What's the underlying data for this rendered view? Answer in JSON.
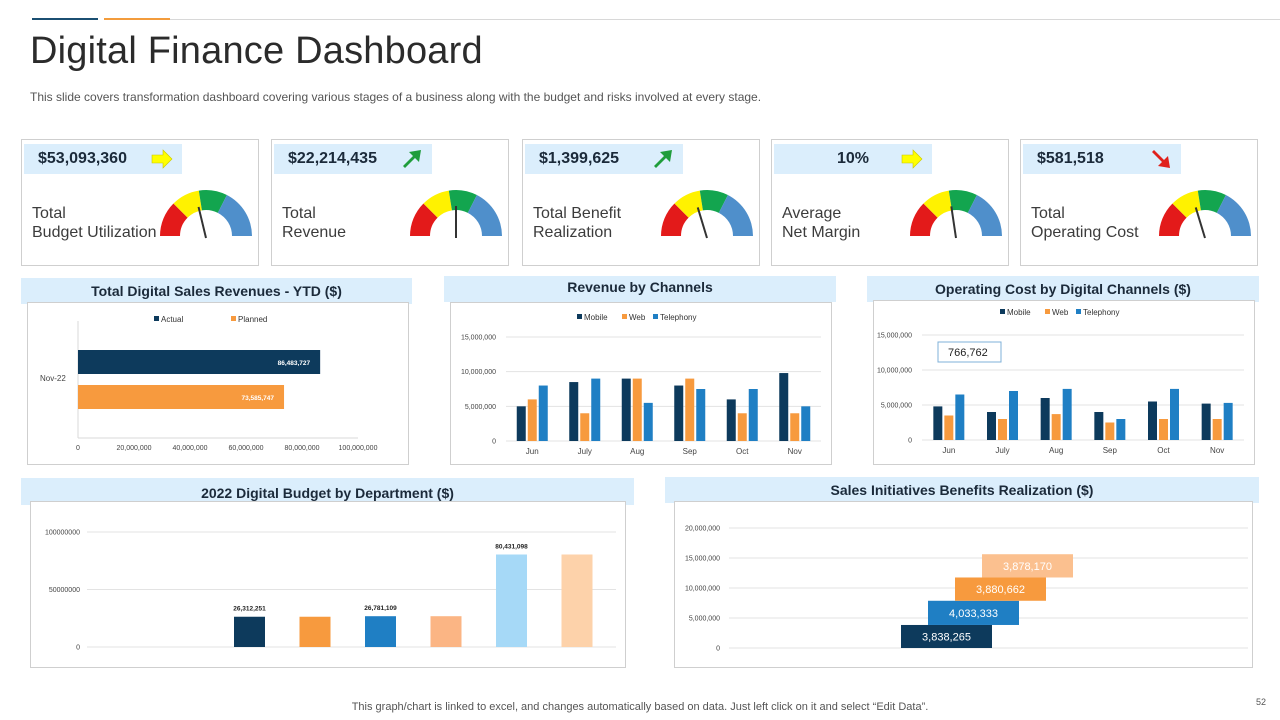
{
  "header": {
    "title": "Digital Finance Dashboard",
    "subtitle": "This slide covers transformation dashboard covering various  stages of a business along with the budget and risks involved  at every stage.",
    "accent_colors": [
      "#1b4f72",
      "#f39c3c"
    ]
  },
  "kpis": [
    {
      "value": "$53,093,360",
      "label_line1": "Total",
      "label_line2": "Budget Utilization",
      "trend": "flat",
      "trend_icon": "arrow-right-icon",
      "gauge_level": 0.42
    },
    {
      "value": "$22,214,435",
      "label_line1": "Total",
      "label_line2": "Revenue",
      "trend": "up",
      "trend_icon": "arrow-up-right-icon",
      "gauge_level": 0.5
    },
    {
      "value": "$1,399,625",
      "label_line1": "Total Benefit",
      "label_line2": "Realization",
      "trend": "up",
      "trend_icon": "arrow-up-right-icon",
      "gauge_level": 0.4
    },
    {
      "value": "10%",
      "label_line1": "Average",
      "label_line2": "Net Margin",
      "trend": "flat",
      "trend_icon": "arrow-right-icon",
      "gauge_level": 0.45
    },
    {
      "value": "$581,518",
      "label_line1": "Total",
      "label_line2": "Operating Cost",
      "trend": "down",
      "trend_icon": "arrow-down-right-icon",
      "gauge_level": 0.4
    }
  ],
  "colors": {
    "navy": "#0d3a5c",
    "orange": "#f79a3e",
    "blue": "#1f7fc4",
    "light_blue": "#a6d9f7",
    "peach": "#fdd2aa",
    "gauge_red": "#e31a1a",
    "gauge_yellow": "#fff200",
    "gauge_green": "#13a54f",
    "gauge_blue": "#4f8fcb",
    "arrow_yellow": "#ffff00",
    "arrow_green": "#1f9d3b",
    "arrow_red": "#e0201b"
  },
  "chart_data": [
    {
      "id": "ytd",
      "type": "bar",
      "orientation": "horizontal",
      "title": "Total Digital Sales Revenues - YTD ($)",
      "categories": [
        "Nov-22"
      ],
      "series": [
        {
          "name": "Actual",
          "values": [
            86483727
          ],
          "label": "86,483,727"
        },
        {
          "name": "Planned",
          "values": [
            73585747
          ],
          "label": "73,585,747"
        }
      ],
      "xlim": [
        0,
        100000000
      ],
      "ticks": [
        "0",
        "20,000,000",
        "40,000,000",
        "60,000,000",
        "80,000,000",
        "100,000,000"
      ],
      "tick_values": [
        0,
        20000000,
        40000000,
        60000000,
        80000000,
        100000000
      ],
      "legend": "top-center"
    },
    {
      "id": "channels",
      "type": "bar",
      "title": "Revenue by Channels",
      "categories": [
        "Jun",
        "July",
        "Aug",
        "Sep",
        "Oct",
        "Nov"
      ],
      "series": [
        {
          "name": "Mobile",
          "values": [
            5000000,
            8500000,
            9000000,
            8000000,
            6000000,
            9800000
          ]
        },
        {
          "name": "Web",
          "values": [
            6000000,
            4000000,
            9000000,
            9000000,
            4000000,
            4000000
          ]
        },
        {
          "name": "Telephony",
          "values": [
            8000000,
            9000000,
            5500000,
            7500000,
            7500000,
            5000000
          ]
        }
      ],
      "ylim": [
        0,
        15000000
      ],
      "ticks": [
        "0",
        "5,000,000",
        "10,000,000",
        "15,000,000"
      ],
      "tick_values": [
        0,
        5000000,
        10000000,
        15000000
      ],
      "legend": "top-center"
    },
    {
      "id": "opcost",
      "type": "bar",
      "title": "Operating Cost by Digital Channels ($)",
      "categories": [
        "Jun",
        "July",
        "Aug",
        "Sep",
        "Oct",
        "Nov"
      ],
      "series": [
        {
          "name": "Mobile",
          "values": [
            4800000,
            4000000,
            6000000,
            4000000,
            5500000,
            5200000
          ]
        },
        {
          "name": "Web",
          "values": [
            3500000,
            3000000,
            3700000,
            2500000,
            3000000,
            3000000
          ]
        },
        {
          "name": "Telephony",
          "values": [
            6500000,
            7000000,
            7300000,
            3000000,
            7300000,
            5300000
          ]
        }
      ],
      "ylim": [
        0,
        15000000
      ],
      "ticks": [
        "0",
        "5,000,000",
        "10,000,000",
        "15,000,000"
      ],
      "tick_values": [
        0,
        5000000,
        10000000,
        15000000
      ],
      "callout": "766,762",
      "legend": "top-center"
    },
    {
      "id": "budget",
      "type": "bar",
      "title": "2022 Digital Budget by Department ($)",
      "values": [
        26312251,
        26312251,
        26781109,
        26781109,
        80431098,
        80431098
      ],
      "labels": [
        "26,312,251",
        "",
        "26,781,109",
        "",
        "80,431,098",
        ""
      ],
      "bar_colors": [
        "#0d3a5c",
        "#f79a3e",
        "#1f7fc4",
        "#fbb584",
        "#a6d9f7",
        "#fdd2aa"
      ],
      "ylim": [
        0,
        100000000
      ],
      "ticks": [
        "0",
        "50000000",
        "100000000"
      ],
      "tick_values": [
        0,
        50000000,
        100000000
      ]
    },
    {
      "id": "benefits",
      "type": "bar",
      "stacked": "waterfall",
      "title": "Sales Initiatives Benefits Realization ($)",
      "values": [
        3838265,
        4033333,
        3880662,
        3878170
      ],
      "labels": [
        "3,838,265",
        "4,033,333",
        "3,880,662",
        "3,878,170"
      ],
      "bar_colors": [
        "#0d3a5c",
        "#1f7fc4",
        "#f79a3e",
        "#fbc08f"
      ],
      "ylim": [
        0,
        20000000
      ],
      "ticks": [
        "0",
        "5,000,000",
        "10,000,000",
        "15,000,000",
        "20,000,000"
      ],
      "tick_values": [
        0,
        5000000,
        10000000,
        15000000,
        20000000
      ]
    }
  ],
  "footer": {
    "note": "This graph/chart is linked to excel,  and changes automatically based on data. Just left click on it and select “Edit Data”.",
    "page_number": "52"
  }
}
